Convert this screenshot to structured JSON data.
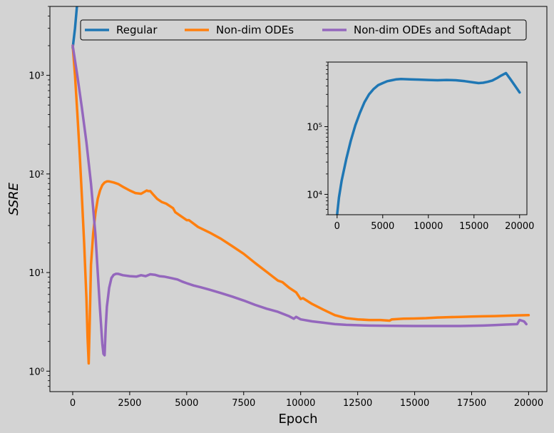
{
  "colors": {
    "background": "#d3d3d3",
    "regular": "#1f77b4",
    "nondim": "#ff7f0e",
    "softadapt": "#9467bd"
  },
  "chart_data": [
    {
      "type": "line",
      "xlabel": "Epoch",
      "ylabel": "SSRE",
      "y_scale": "log",
      "xlim": [
        -1000,
        20800
      ],
      "ylim": [
        0.62,
        5000
      ],
      "x_ticks": [
        0,
        2500,
        5000,
        7500,
        10000,
        12500,
        15000,
        17500,
        20000
      ],
      "x_tick_labels": [
        "0",
        "2500",
        "5000",
        "7500",
        "10000",
        "12500",
        "15000",
        "17500",
        "20000"
      ],
      "y_ticks": [
        1,
        10,
        100,
        1000
      ],
      "y_tick_labels": [
        "10⁰",
        "10¹",
        "10²",
        "10³"
      ],
      "grid": false,
      "legend": {
        "placement": "top",
        "columns": 3,
        "entries": [
          "Regular",
          "Non-dim ODEs",
          "Non-dim ODEs and SoftAdapt"
        ]
      },
      "series": [
        {
          "name": "Regular",
          "color_key": "regular",
          "x": [
            0,
            100,
            200,
            300
          ],
          "y": [
            1900,
            3000,
            5500,
            9000
          ]
        },
        {
          "name": "Non-dim ODEs",
          "color_key": "nondim",
          "x": [
            0,
            100,
            200,
            300,
            400,
            500,
            600,
            650,
            700,
            750,
            800,
            900,
            1000,
            1100,
            1200,
            1300,
            1400,
            1500,
            1600,
            1800,
            2000,
            2250,
            2500,
            2750,
            3000,
            3250,
            3300,
            3400,
            3500,
            3700,
            3900,
            4100,
            4400,
            4500,
            4700,
            5000,
            5100,
            5500,
            6000,
            6500,
            7000,
            7500,
            8000,
            8500,
            9000,
            9200,
            9500,
            9800,
            10000,
            10100,
            10500,
            11000,
            11500,
            12000,
            12500,
            13000,
            13500,
            13900,
            14000,
            14500,
            15000,
            15500,
            16000,
            16500,
            17000,
            17500,
            18000,
            18500,
            19000,
            19500,
            20000
          ],
          "y": [
            2000,
            1000,
            420,
            170,
            60,
            20,
            5.5,
            2.2,
            1.2,
            3.5,
            12,
            25,
            40,
            56,
            68,
            77,
            82,
            84,
            84,
            82,
            79,
            73,
            68,
            64,
            63,
            68,
            67,
            67,
            63,
            56,
            52,
            50,
            45,
            41,
            38,
            34,
            34,
            29,
            25.5,
            22,
            18.5,
            15.5,
            12.5,
            10.2,
            8.3,
            8.0,
            7.0,
            6.3,
            5.4,
            5.5,
            4.8,
            4.2,
            3.7,
            3.45,
            3.35,
            3.3,
            3.3,
            3.25,
            3.35,
            3.4,
            3.42,
            3.45,
            3.5,
            3.53,
            3.55,
            3.58,
            3.6,
            3.62,
            3.65,
            3.68,
            3.7
          ]
        },
        {
          "name": "Non-dim ODEs and SoftAdapt",
          "color_key": "softadapt",
          "x": [
            0,
            200,
            400,
            600,
            800,
            1000,
            1100,
            1200,
            1300,
            1350,
            1400,
            1450,
            1500,
            1600,
            1700,
            1800,
            1900,
            2000,
            2200,
            2500,
            2800,
            3000,
            3200,
            3400,
            3600,
            3800,
            4000,
            4300,
            4600,
            4800,
            5000,
            5300,
            5600,
            6000,
            6500,
            7000,
            7500,
            8000,
            8500,
            9000,
            9500,
            9700,
            9800,
            10000,
            10500,
            11000,
            11500,
            12000,
            13000,
            14000,
            15000,
            16000,
            17000,
            18000,
            18500,
            19000,
            19500,
            19600,
            19800,
            19900
          ],
          "y": [
            2000,
            1000,
            470,
            210,
            80,
            24,
            10,
            4.2,
            1.9,
            1.5,
            1.45,
            2.8,
            4.5,
            7.0,
            8.8,
            9.5,
            9.7,
            9.7,
            9.4,
            9.2,
            9.1,
            9.4,
            9.2,
            9.6,
            9.5,
            9.2,
            9.1,
            8.8,
            8.5,
            8.1,
            7.8,
            7.4,
            7.1,
            6.7,
            6.2,
            5.7,
            5.2,
            4.7,
            4.3,
            4.0,
            3.6,
            3.4,
            3.55,
            3.35,
            3.2,
            3.1,
            3.0,
            2.95,
            2.9,
            2.88,
            2.87,
            2.87,
            2.87,
            2.9,
            2.93,
            2.97,
            3.0,
            3.3,
            3.2,
            3.0
          ]
        }
      ]
    },
    {
      "type": "line",
      "role": "inset",
      "y_scale": "log",
      "xlim": [
        -1000,
        20800
      ],
      "ylim": [
        5000,
        900000
      ],
      "x_ticks": [
        0,
        5000,
        10000,
        15000,
        20000
      ],
      "x_tick_labels": [
        "0",
        "5000",
        "10000",
        "15000",
        "20000"
      ],
      "y_ticks": [
        10000,
        100000
      ],
      "y_tick_labels": [
        "10⁴",
        "10⁵"
      ],
      "grid": false,
      "series": [
        {
          "name": "Regular",
          "color_key": "regular",
          "x": [
            0,
            200,
            500,
            1000,
            1500,
            2000,
            2500,
            3000,
            3500,
            4000,
            4500,
            5000,
            5500,
            6000,
            6500,
            7000,
            8000,
            9000,
            10000,
            11000,
            12000,
            13000,
            14000,
            15000,
            15500,
            16000,
            16500,
            17000,
            17500,
            18000,
            18500,
            19000,
            19500,
            20000
          ],
          "y": [
            5000,
            9000,
            16000,
            33000,
            62000,
            105000,
            160000,
            230000,
            300000,
            360000,
            410000,
            440000,
            470000,
            485000,
            500000,
            505000,
            500000,
            495000,
            490000,
            485000,
            490000,
            485000,
            470000,
            450000,
            440000,
            445000,
            460000,
            480000,
            520000,
            570000,
            620000,
            500000,
            400000,
            320000
          ]
        }
      ]
    }
  ]
}
